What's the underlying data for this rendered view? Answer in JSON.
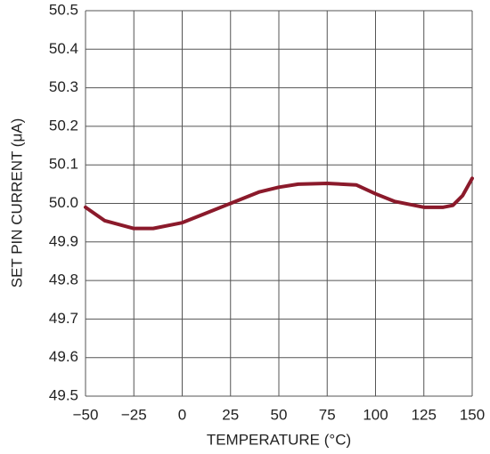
{
  "chart_data": {
    "type": "line",
    "x_label": "TEMPERATURE (°C)",
    "y_label": "SET PIN CURRENT (μA)",
    "x": [
      -50,
      -40,
      -25,
      -15,
      0,
      10,
      25,
      40,
      50,
      60,
      75,
      90,
      100,
      110,
      125,
      135,
      140,
      145,
      150
    ],
    "series": [
      {
        "color": "#8b1a2b",
        "values": [
          49.99,
          49.955,
          49.935,
          49.935,
          49.95,
          49.97,
          50.0,
          50.03,
          50.042,
          50.05,
          50.052,
          50.048,
          50.025,
          50.005,
          49.99,
          49.99,
          49.995,
          50.02,
          50.065
        ]
      }
    ],
    "xlim": [
      -50,
      150
    ],
    "xticks": [
      {
        "value": -50,
        "label": "−50"
      },
      {
        "value": -25,
        "label": "−25"
      },
      0,
      25,
      50,
      75,
      100,
      125,
      150
    ],
    "ylim": [
      49.5,
      50.5
    ],
    "yticks": [
      49.5,
      49.6,
      49.7,
      49.8,
      49.9,
      {
        "value": 50,
        "label": "50.0"
      },
      50.1,
      50.2,
      50.3,
      50.4,
      50.5
    ],
    "grid": true
  }
}
